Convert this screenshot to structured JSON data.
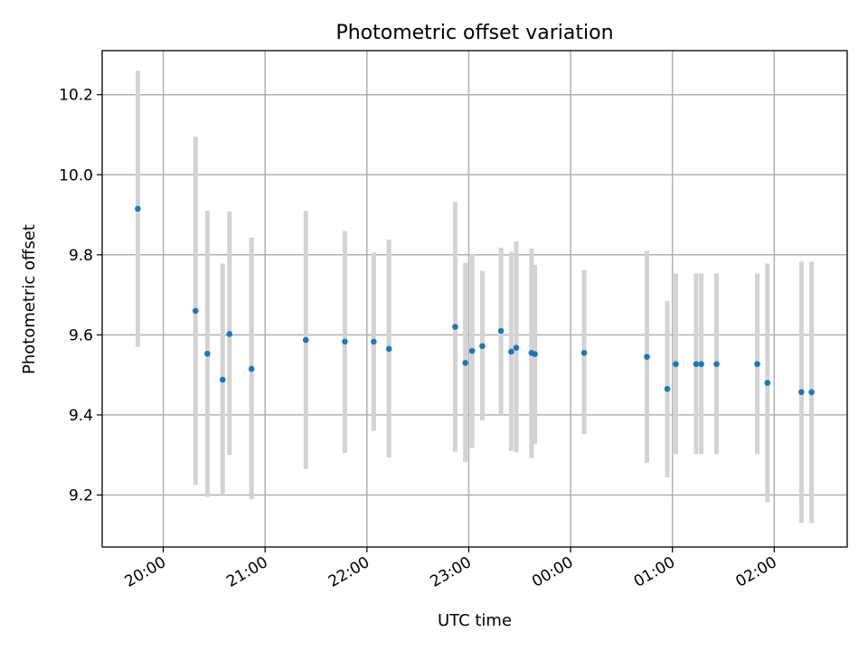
{
  "chart_data": {
    "type": "scatter",
    "title": "Photometric offset variation",
    "xlabel": "UTC time",
    "ylabel": "Photometric offset",
    "x_ticks": [
      "20:00",
      "21:00",
      "22:00",
      "23:00",
      "00:00",
      "01:00",
      "02:00"
    ],
    "y_ticks": [
      9.2,
      9.4,
      9.6,
      9.8,
      10.0,
      10.2
    ],
    "ylim": [
      9.07,
      10.31
    ],
    "xlim": [
      "19:24",
      "02:43"
    ],
    "grid": true,
    "colors": {
      "point": "#1f77b4",
      "errorbar": "#d3d3d3"
    },
    "points": [
      {
        "t": "19:45",
        "y": 9.915,
        "lo": 9.57,
        "hi": 10.26
      },
      {
        "t": "20:19",
        "y": 9.66,
        "lo": 9.225,
        "hi": 10.095
      },
      {
        "t": "20:26",
        "y": 9.553,
        "lo": 9.195,
        "hi": 9.91
      },
      {
        "t": "20:35",
        "y": 9.488,
        "lo": 9.2,
        "hi": 9.778
      },
      {
        "t": "20:39",
        "y": 9.602,
        "lo": 9.3,
        "hi": 9.908
      },
      {
        "t": "20:52",
        "y": 9.515,
        "lo": 9.19,
        "hi": 9.843
      },
      {
        "t": "21:24",
        "y": 9.587,
        "lo": 9.265,
        "hi": 9.91
      },
      {
        "t": "21:47",
        "y": 9.583,
        "lo": 9.305,
        "hi": 9.859
      },
      {
        "t": "22:04",
        "y": 9.583,
        "lo": 9.36,
        "hi": 9.806
      },
      {
        "t": "22:13",
        "y": 9.565,
        "lo": 9.293,
        "hi": 9.838
      },
      {
        "t": "22:52",
        "y": 9.62,
        "lo": 9.308,
        "hi": 9.932
      },
      {
        "t": "22:58",
        "y": 9.53,
        "lo": 9.282,
        "hi": 9.78
      },
      {
        "t": "23:02",
        "y": 9.56,
        "lo": 9.318,
        "hi": 9.802
      },
      {
        "t": "23:08",
        "y": 9.572,
        "lo": 9.386,
        "hi": 9.76
      },
      {
        "t": "23:19",
        "y": 9.61,
        "lo": 9.4,
        "hi": 9.818
      },
      {
        "t": "23:25",
        "y": 9.558,
        "lo": 9.31,
        "hi": 9.807
      },
      {
        "t": "23:28",
        "y": 9.568,
        "lo": 9.306,
        "hi": 9.833
      },
      {
        "t": "23:37",
        "y": 9.555,
        "lo": 9.292,
        "hi": 9.816
      },
      {
        "t": "23:39",
        "y": 9.552,
        "lo": 9.327,
        "hi": 9.775
      },
      {
        "t": "00:08",
        "y": 9.555,
        "lo": 9.352,
        "hi": 9.762
      },
      {
        "t": "00:45",
        "y": 9.545,
        "lo": 9.28,
        "hi": 9.81
      },
      {
        "t": "00:57",
        "y": 9.465,
        "lo": 9.244,
        "hi": 9.685
      },
      {
        "t": "01:02",
        "y": 9.527,
        "lo": 9.302,
        "hi": 9.753
      },
      {
        "t": "01:14",
        "y": 9.527,
        "lo": 9.302,
        "hi": 9.753
      },
      {
        "t": "01:17",
        "y": 9.527,
        "lo": 9.302,
        "hi": 9.753
      },
      {
        "t": "01:26",
        "y": 9.527,
        "lo": 9.302,
        "hi": 9.753
      },
      {
        "t": "01:50",
        "y": 9.527,
        "lo": 9.302,
        "hi": 9.753
      },
      {
        "t": "01:56",
        "y": 9.48,
        "lo": 9.182,
        "hi": 9.778
      },
      {
        "t": "02:16",
        "y": 9.457,
        "lo": 9.13,
        "hi": 9.783
      },
      {
        "t": "02:22",
        "y": 9.457,
        "lo": 9.13,
        "hi": 9.783
      }
    ]
  }
}
